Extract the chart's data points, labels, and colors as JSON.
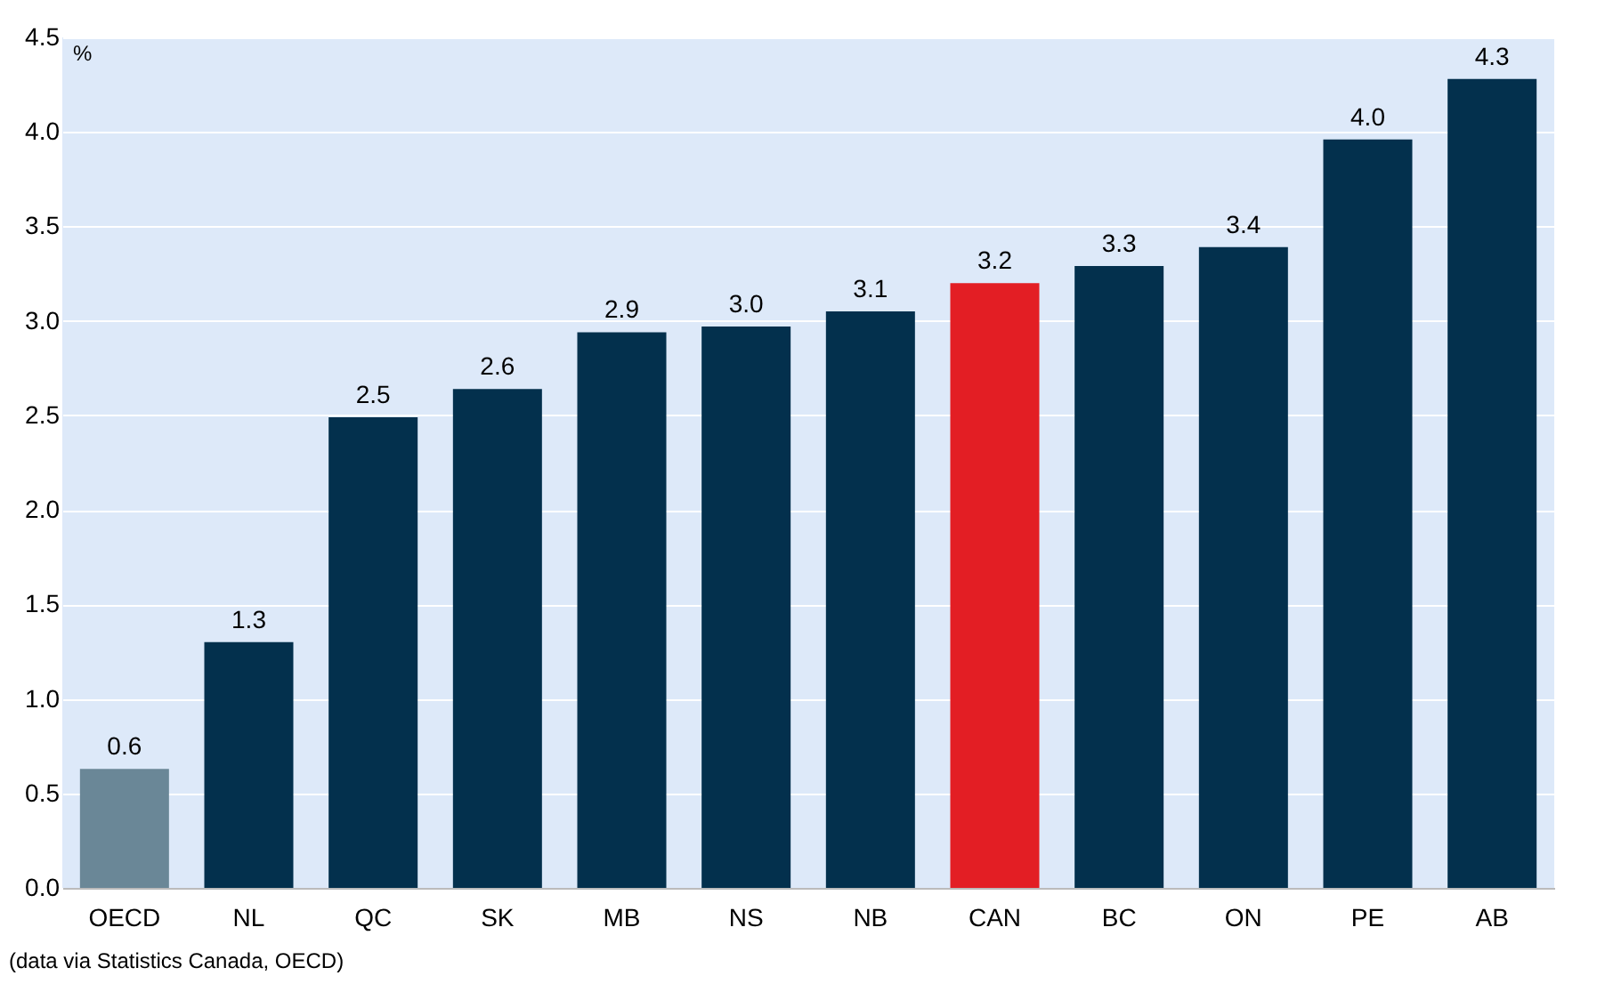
{
  "chart_data": {
    "type": "bar",
    "ylabel": "%",
    "categories": [
      "OECD",
      "NL",
      "QC",
      "SK",
      "MB",
      "NS",
      "NB",
      "CAN",
      "BC",
      "ON",
      "PE",
      "AB"
    ],
    "values": [
      0.63,
      1.3,
      2.49,
      2.64,
      2.94,
      2.97,
      3.05,
      3.2,
      3.29,
      3.39,
      3.96,
      4.28
    ],
    "value_labels": [
      "0.6",
      "1.3",
      "2.5",
      "2.6",
      "2.9",
      "3.0",
      "3.1",
      "3.2",
      "3.3",
      "3.4",
      "4.0",
      "4.3"
    ],
    "colors": [
      "#6a8797",
      "#03304d",
      "#03304d",
      "#03304d",
      "#03304d",
      "#03304d",
      "#03304d",
      "#e31e24",
      "#03304d",
      "#03304d",
      "#03304d",
      "#03304d"
    ],
    "ylim": [
      0,
      4.5
    ],
    "yticks": [
      {
        "value": 0,
        "label": "0.0"
      },
      {
        "value": 0.5,
        "label": "0.5"
      },
      {
        "value": 1,
        "label": "1.0"
      },
      {
        "value": 1.5,
        "label": "1.5"
      },
      {
        "value": 2,
        "label": "2.0"
      },
      {
        "value": 2.5,
        "label": "2.5"
      },
      {
        "value": 3,
        "label": "3.0"
      },
      {
        "value": 3.5,
        "label": "3.5"
      },
      {
        "value": 4,
        "label": "4.0"
      },
      {
        "value": 4.5,
        "label": "4.5"
      }
    ],
    "grid": "y",
    "annotations": [
      "(data via Statistics Canada, OECD)"
    ]
  }
}
